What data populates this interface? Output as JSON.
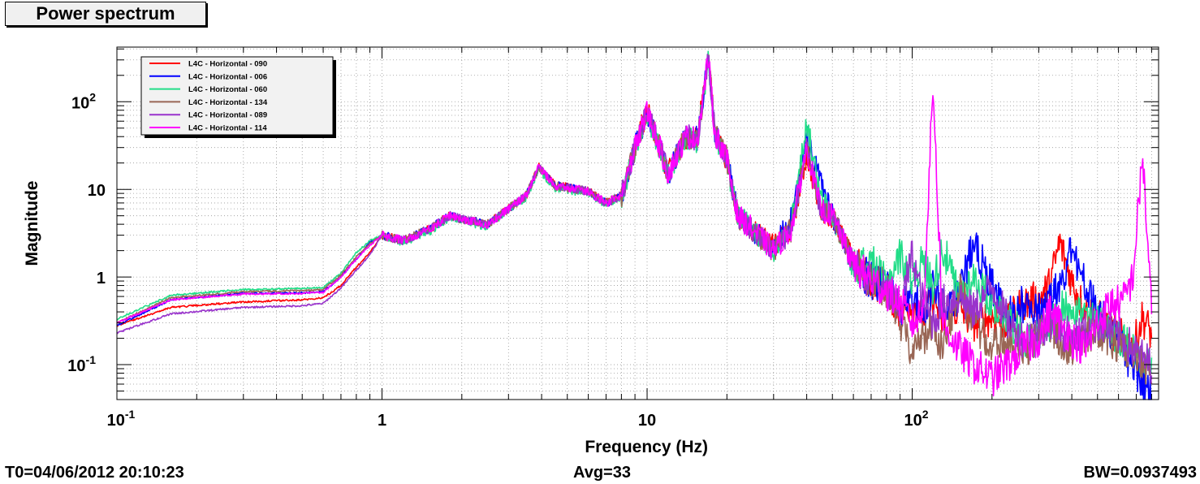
{
  "title": "Power spectrum",
  "footer": {
    "t0": "T0=04/06/2012 20:10:23",
    "avg": "Avg=33",
    "bw": "BW=0.0937493"
  },
  "chart_data": {
    "type": "line",
    "title": "Power spectrum",
    "xlabel": "Frequency (Hz)",
    "ylabel": "Magnitude",
    "xscale": "log",
    "yscale": "log",
    "xlim": [
      0.1,
      850
    ],
    "ylim": [
      0.04,
      420
    ],
    "grid": true,
    "legend_position": "top-left",
    "x_ticks": [
      {
        "value": 0.1,
        "base": "10",
        "exp": "-1"
      },
      {
        "value": 1,
        "base": "1",
        "exp": ""
      },
      {
        "value": 10,
        "base": "10",
        "exp": ""
      },
      {
        "value": 100,
        "base": "10",
        "exp": "2"
      }
    ],
    "y_ticks": [
      {
        "value": 0.1,
        "base": "10",
        "exp": "-1"
      },
      {
        "value": 1,
        "base": "1",
        "exp": ""
      },
      {
        "value": 10,
        "base": "10",
        "exp": ""
      },
      {
        "value": 100,
        "base": "10",
        "exp": "2"
      }
    ],
    "x": [
      0.1,
      0.16,
      0.3,
      0.5,
      0.6,
      0.7,
      0.8,
      0.9,
      1.0,
      1.2,
      1.5,
      1.8,
      2.0,
      2.5,
      3.0,
      3.5,
      3.9,
      4.5,
      5.0,
      6.0,
      7.0,
      8.0,
      9.0,
      10.0,
      11.0,
      12.0,
      14.0,
      15.5,
      17.0,
      18.0,
      20.0,
      22.0,
      25.0,
      30.0,
      35.0,
      40.0,
      45.0,
      50.0,
      60.0,
      70.0,
      80.0,
      90.0,
      100.0,
      110.0,
      120.0,
      130.0,
      150.0,
      170.0,
      200.0,
      230.0,
      260.0,
      300.0,
      330.0,
      360.0,
      400.0,
      450.0,
      500.0,
      560.0,
      620.0,
      680.0,
      740.0,
      800.0
    ],
    "series": [
      {
        "name": "L4C - Horizontal - 090",
        "color": "#ff0000",
        "values": [
          0.28,
          0.45,
          0.52,
          0.55,
          0.58,
          0.8,
          1.3,
          1.9,
          3.0,
          2.6,
          3.5,
          5.0,
          4.6,
          4.0,
          6.0,
          8.5,
          18,
          11,
          10.5,
          9.5,
          7.0,
          8.5,
          30,
          80,
          35,
          15,
          40,
          38,
          350,
          45,
          22,
          5.0,
          3.5,
          2.2,
          3.5,
          25,
          6.0,
          5.0,
          1.5,
          0.9,
          0.8,
          0.4,
          0.5,
          0.35,
          0.6,
          0.3,
          0.45,
          0.3,
          0.35,
          0.3,
          0.5,
          0.55,
          0.8,
          2.5,
          0.9,
          0.4,
          0.35,
          0.25,
          0.2,
          0.15,
          0.35,
          0.22
        ]
      },
      {
        "name": "L4C - Horizontal - 006",
        "color": "#0000ff",
        "values": [
          0.28,
          0.55,
          0.65,
          0.66,
          0.68,
          1.0,
          1.6,
          2.5,
          3.0,
          2.6,
          3.5,
          5.0,
          4.6,
          4.0,
          6.0,
          8.5,
          18,
          11,
          10.5,
          9.5,
          7.0,
          8.5,
          30,
          75,
          35,
          15,
          40,
          38,
          330,
          45,
          22,
          5.0,
          3.5,
          2.0,
          5.0,
          40,
          12,
          5.0,
          1.5,
          0.9,
          0.8,
          0.4,
          0.6,
          0.4,
          0.8,
          0.5,
          0.6,
          2.5,
          0.8,
          0.35,
          0.5,
          0.4,
          0.6,
          0.8,
          2.0,
          0.8,
          0.4,
          0.25,
          0.15,
          0.1,
          0.06,
          0.05
        ]
      },
      {
        "name": "L4C - Horizontal - 060",
        "color": "#22dd88",
        "values": [
          0.33,
          0.62,
          0.72,
          0.74,
          0.76,
          1.1,
          1.9,
          2.6,
          3.0,
          2.5,
          3.3,
          4.8,
          4.4,
          3.8,
          5.8,
          8.2,
          17,
          10.5,
          10,
          9.0,
          6.8,
          8.0,
          28,
          72,
          33,
          14,
          38,
          36,
          300,
          42,
          20,
          5.0,
          3.5,
          2.0,
          4.0,
          60,
          8.0,
          5.0,
          1.3,
          1.5,
          0.8,
          1.8,
          1.0,
          1.5,
          0.8,
          2.2,
          0.6,
          1.0,
          0.5,
          0.35,
          0.2,
          0.2,
          0.3,
          0.4,
          0.5,
          0.35,
          0.3,
          0.25,
          0.2,
          0.15,
          0.12,
          0.1
        ]
      },
      {
        "name": "L4C - Horizontal - 134",
        "color": "#996655",
        "values": [
          0.3,
          0.58,
          0.68,
          0.7,
          0.72,
          1.05,
          1.7,
          2.4,
          3.0,
          2.6,
          3.5,
          5.0,
          4.6,
          4.0,
          6.0,
          8.5,
          18,
          11,
          10.5,
          9.5,
          7.0,
          8.5,
          30,
          78,
          35,
          15,
          40,
          38,
          320,
          45,
          22,
          5.0,
          3.5,
          2.0,
          3.5,
          30,
          6.0,
          5.0,
          1.4,
          0.9,
          0.7,
          0.3,
          0.15,
          0.2,
          0.3,
          0.15,
          0.8,
          0.3,
          0.15,
          0.2,
          0.15,
          0.2,
          0.3,
          0.2,
          0.15,
          0.2,
          0.25,
          0.2,
          0.15,
          0.12,
          0.1,
          0.08
        ]
      },
      {
        "name": "L4C - Horizontal - 089",
        "color": "#9933cc",
        "values": [
          0.23,
          0.38,
          0.45,
          0.47,
          0.5,
          0.75,
          1.2,
          1.8,
          3.0,
          2.6,
          3.5,
          5.0,
          4.6,
          4.0,
          6.0,
          8.5,
          18,
          11,
          10.5,
          9.5,
          7.0,
          8.5,
          30,
          78,
          35,
          15,
          40,
          38,
          320,
          45,
          22,
          5.0,
          3.5,
          2.0,
          3.5,
          30,
          6.0,
          5.0,
          1.4,
          0.9,
          0.7,
          0.4,
          1.8,
          0.5,
          0.3,
          0.5,
          0.6,
          0.4,
          0.8,
          0.3,
          0.2,
          0.25,
          0.3,
          0.25,
          0.2,
          0.25,
          0.3,
          0.25,
          0.2,
          0.15,
          0.12,
          0.1
        ]
      },
      {
        "name": "L4C - Horizontal - 114",
        "color": "#ff00ff",
        "values": [
          0.3,
          0.55,
          0.64,
          0.65,
          0.67,
          1.0,
          1.6,
          2.3,
          3.0,
          2.6,
          3.5,
          5.0,
          4.6,
          4.0,
          6.0,
          8.5,
          18,
          11,
          10.5,
          9.5,
          7.0,
          8.5,
          30,
          78,
          35,
          15,
          40,
          38,
          320,
          45,
          22,
          5.0,
          3.5,
          2.0,
          3.5,
          30,
          6.0,
          5.0,
          1.4,
          0.9,
          0.7,
          0.5,
          0.3,
          0.4,
          160,
          0.3,
          0.15,
          0.1,
          0.07,
          0.1,
          0.15,
          0.2,
          0.4,
          0.3,
          0.2,
          0.15,
          0.3,
          0.5,
          0.5,
          1.0,
          25,
          0.4
        ]
      }
    ]
  }
}
